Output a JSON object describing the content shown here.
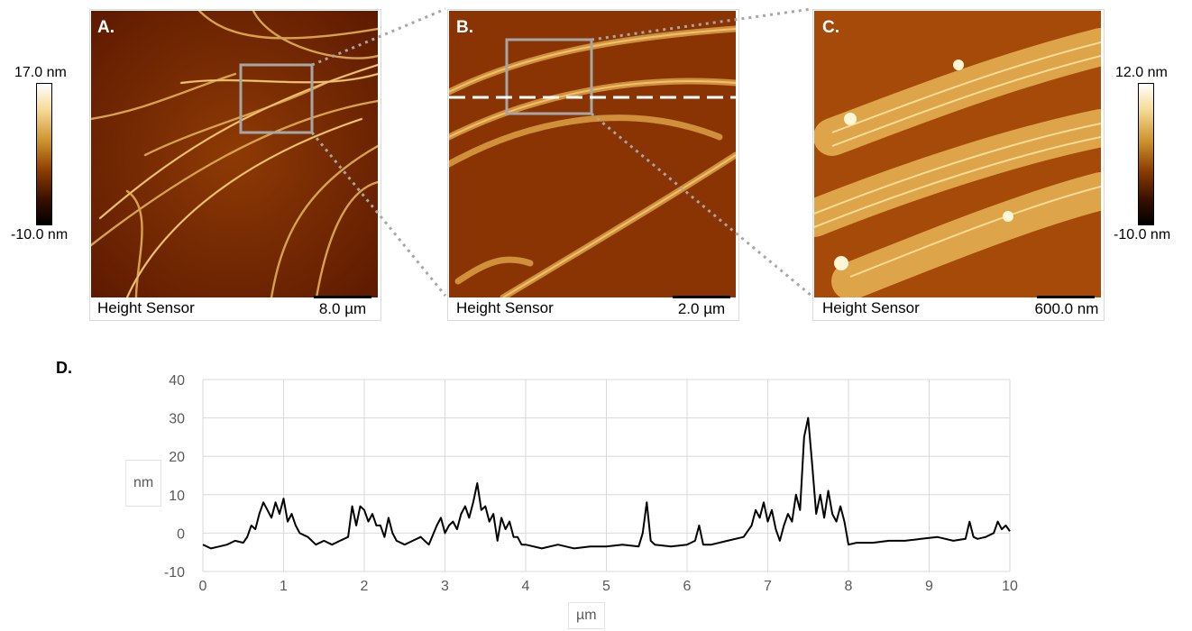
{
  "panels": [
    {
      "letter": "A.",
      "caption": "Height Sensor",
      "scale": "8.0 µm"
    },
    {
      "letter": "B.",
      "caption": "Height Sensor",
      "scale": "2.0 µm"
    },
    {
      "letter": "C.",
      "caption": "Height Sensor",
      "scale": "600.0 nm"
    }
  ],
  "colorbars": {
    "left": {
      "max": "17.0 nm",
      "min": "-10.0 nm"
    },
    "right": {
      "max": "12.0 nm",
      "min": "-10.0 nm"
    }
  },
  "colors": {
    "afm_dark": "#6b1f00",
    "afm_mid": "#b85a0a",
    "afm_bright": "#ffe7a0",
    "line": "#000000",
    "grid": "#d9d9d9",
    "zoom_box": "#a6a6a6"
  },
  "chart_data": {
    "type": "line",
    "panel_letter": "D.",
    "xlabel": "µm",
    "ylabel": "nm",
    "xlim": [
      0,
      10
    ],
    "ylim": [
      -10,
      40
    ],
    "xticks": [
      0,
      1,
      2,
      3,
      4,
      5,
      6,
      7,
      8,
      9,
      10
    ],
    "yticks": [
      -10,
      0,
      10,
      20,
      30,
      40
    ],
    "grid": true,
    "series": [
      {
        "x": [
          0,
          0.1,
          0.2,
          0.3,
          0.4,
          0.5,
          0.55,
          0.6,
          0.65,
          0.7,
          0.75,
          0.8,
          0.85,
          0.9,
          0.95,
          1.0,
          1.05,
          1.1,
          1.15,
          1.2,
          1.3,
          1.4,
          1.5,
          1.6,
          1.7,
          1.8,
          1.85,
          1.9,
          1.95,
          2.0,
          2.05,
          2.1,
          2.15,
          2.2,
          2.25,
          2.3,
          2.35,
          2.4,
          2.5,
          2.6,
          2.7,
          2.8,
          2.9,
          2.95,
          3.0,
          3.05,
          3.1,
          3.15,
          3.2,
          3.25,
          3.3,
          3.35,
          3.4,
          3.45,
          3.5,
          3.55,
          3.6,
          3.65,
          3.7,
          3.75,
          3.8,
          3.85,
          3.9,
          3.95,
          4.0,
          4.2,
          4.4,
          4.6,
          4.8,
          5.0,
          5.2,
          5.4,
          5.45,
          5.5,
          5.55,
          5.6,
          5.8,
          6.0,
          6.1,
          6.15,
          6.2,
          6.3,
          6.5,
          6.7,
          6.8,
          6.85,
          6.9,
          6.95,
          7.0,
          7.05,
          7.1,
          7.15,
          7.2,
          7.25,
          7.3,
          7.35,
          7.4,
          7.45,
          7.5,
          7.55,
          7.6,
          7.65,
          7.7,
          7.75,
          7.8,
          7.85,
          7.9,
          7.95,
          8.0,
          8.1,
          8.3,
          8.5,
          8.7,
          8.9,
          9.1,
          9.3,
          9.45,
          9.5,
          9.55,
          9.6,
          9.7,
          9.8,
          9.85,
          9.9,
          9.95,
          10.0
        ],
        "values": [
          -3,
          -4,
          -3.5,
          -3,
          -2,
          -2.5,
          -1,
          2,
          1,
          5,
          8,
          6,
          4,
          8,
          5,
          9,
          3,
          5,
          2,
          0,
          -1,
          -3,
          -2,
          -3,
          -2,
          -1,
          7,
          2,
          7,
          6,
          3,
          5,
          2,
          2,
          -1,
          4,
          0,
          -2,
          -3,
          -2,
          -1,
          -3,
          2,
          4,
          0,
          2,
          3,
          1,
          5,
          7,
          4,
          8,
          13,
          6,
          7,
          3,
          5,
          -2,
          4,
          1,
          3,
          -1,
          -1,
          -3,
          -3,
          -4,
          -3,
          -4,
          -3.5,
          -3.5,
          -3,
          -3.5,
          0,
          8,
          -2,
          -3,
          -3.5,
          -3,
          -2,
          2,
          -3,
          -3,
          -2,
          -1,
          2,
          6,
          4,
          8,
          3,
          6,
          1,
          -2,
          2,
          5,
          3,
          10,
          6,
          25,
          30,
          18,
          5,
          10,
          4,
          11,
          5,
          3,
          7,
          3,
          -3,
          -2.5,
          -2.5,
          -2,
          -2,
          -1.5,
          -1,
          -2,
          -1.5,
          3,
          -1,
          -1.5,
          -1,
          0,
          3,
          1,
          2,
          0.5
        ]
      }
    ]
  }
}
